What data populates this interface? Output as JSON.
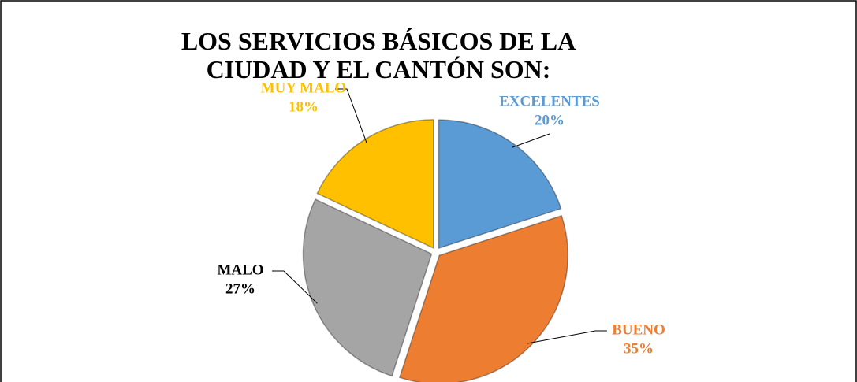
{
  "chart_data": {
    "type": "pie",
    "title": "LOS SERVICIOS BÁSICOS DE LA CIUDAD Y EL CANTÓN SON:",
    "categories": [
      "EXCELENTES",
      "BUENO",
      "MALO",
      "MUY MALO"
    ],
    "values": [
      20,
      35,
      27,
      18
    ],
    "value_labels": [
      "20%",
      "35%",
      "27%",
      "18%"
    ],
    "colors": [
      "#5b9bd5",
      "#ed7d31",
      "#a5a5a5",
      "#ffc000"
    ],
    "label_colors": [
      "#5b9bd5",
      "#ed7d31",
      "#000000",
      "#ffc000"
    ]
  }
}
